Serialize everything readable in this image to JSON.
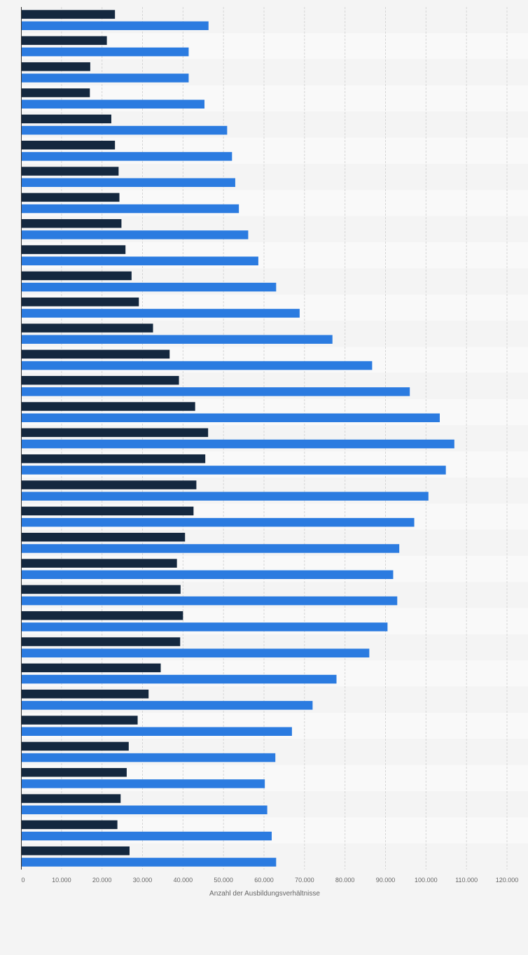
{
  "chart_data": {
    "type": "bar",
    "orientation": "horizontal",
    "title": "",
    "xlabel": "Anzahl der Ausbildungsverhältnisse",
    "ylabel": "",
    "xlim": [
      0,
      120000
    ],
    "x_ticks": [
      {
        "value": 0,
        "label": "0"
      },
      {
        "value": 10000,
        "label": "10.000"
      },
      {
        "value": 20000,
        "label": "20.000"
      },
      {
        "value": 30000,
        "label": "30.000"
      },
      {
        "value": 40000,
        "label": "40.000"
      },
      {
        "value": 50000,
        "label": "50.000"
      },
      {
        "value": 60000,
        "label": "60.000"
      },
      {
        "value": 70000,
        "label": "70.000"
      },
      {
        "value": 80000,
        "label": "80.000"
      },
      {
        "value": 90000,
        "label": "90.000"
      },
      {
        "value": 100000,
        "label": "100.000"
      },
      {
        "value": 110000,
        "label": "110.000"
      },
      {
        "value": 120000,
        "label": "120.000"
      }
    ],
    "grid": "vertical dashed",
    "legend": "none",
    "series": [
      {
        "color": "#14283f",
        "values": [
          23200,
          21200,
          17100,
          17000,
          22300,
          23200,
          24100,
          24300,
          24800,
          25800,
          27300,
          29100,
          32600,
          36700,
          39000,
          43000,
          46200,
          45500,
          43300,
          42600,
          40500,
          38500,
          39400,
          40000,
          39300,
          34500,
          31500,
          28800,
          26600,
          26100,
          24600,
          23800,
          26800
        ]
      },
      {
        "color": "#2b7be0",
        "values": [
          46300,
          41400,
          41400,
          45300,
          50900,
          52100,
          52900,
          53800,
          56100,
          58600,
          63000,
          68800,
          76900,
          86700,
          96000,
          103400,
          107000,
          104900,
          100600,
          97100,
          93400,
          91900,
          92900,
          90500,
          86000,
          77900,
          72000,
          66900,
          62800,
          60200,
          60800,
          61900,
          63000
        ]
      }
    ]
  }
}
